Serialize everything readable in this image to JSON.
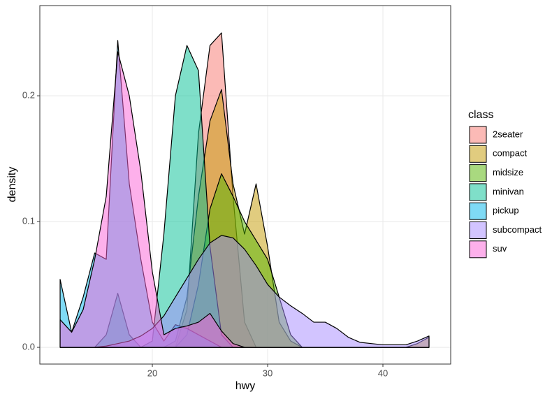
{
  "chart_data": {
    "type": "density",
    "x_label": "hwy",
    "y_label": "density",
    "x": [
      12,
      13,
      14,
      15,
      16,
      17,
      18,
      19,
      20,
      21,
      22,
      23,
      24,
      25,
      26,
      27,
      28,
      29,
      30,
      31,
      32,
      33,
      34,
      35,
      36,
      37,
      38,
      39,
      40,
      41,
      42,
      43,
      44
    ],
    "series": [
      {
        "name": "2seater",
        "color": "#F8766D",
        "values": [
          0,
          0,
          0,
          0,
          0,
          0,
          0,
          0,
          0,
          0,
          0,
          0.03,
          0.17,
          0.24,
          0.25,
          0.12,
          0.02,
          0,
          0,
          0,
          0,
          0,
          0,
          0,
          0,
          0,
          0,
          0,
          0,
          0,
          0,
          0,
          0
        ]
      },
      {
        "name": "compact",
        "color": "#C49A00",
        "values": [
          0,
          0,
          0,
          0,
          0,
          0,
          0,
          0,
          0,
          0,
          0.005,
          0.04,
          0.12,
          0.18,
          0.205,
          0.13,
          0.09,
          0.13,
          0.08,
          0.02,
          0.005,
          0,
          0,
          0,
          0,
          0,
          0,
          0,
          0,
          0,
          0,
          0.003,
          0.008
        ]
      },
      {
        "name": "midsize",
        "color": "#53B400",
        "values": [
          0,
          0,
          0,
          0,
          0,
          0,
          0,
          0,
          0,
          0,
          0,
          0.01,
          0.05,
          0.11,
          0.138,
          0.12,
          0.1,
          0.085,
          0.07,
          0.04,
          0.01,
          0,
          0,
          0,
          0,
          0,
          0,
          0,
          0,
          0,
          0,
          0,
          0
        ]
      },
      {
        "name": "minivan",
        "color": "#00C094",
        "values": [
          0,
          0,
          0,
          0,
          0.01,
          0.043,
          0.01,
          0,
          0.005,
          0.09,
          0.2,
          0.24,
          0.22,
          0.08,
          0.01,
          0,
          0,
          0,
          0,
          0,
          0,
          0,
          0,
          0,
          0,
          0,
          0,
          0,
          0,
          0,
          0,
          0,
          0
        ]
      },
      {
        "name": "pickup",
        "color": "#00B6EB",
        "values": [
          0.054,
          0.012,
          0.04,
          0.075,
          0.07,
          0.244,
          0.13,
          0.07,
          0.02,
          0.005,
          0.018,
          0.015,
          0.01,
          0.005,
          0,
          0,
          0,
          0,
          0,
          0,
          0,
          0,
          0,
          0,
          0,
          0,
          0,
          0,
          0,
          0,
          0,
          0,
          0
        ]
      },
      {
        "name": "subcompact",
        "color": "#A58AFF",
        "values": [
          0,
          0,
          0,
          0,
          0.001,
          0.003,
          0.005,
          0.009,
          0.015,
          0.025,
          0.04,
          0.055,
          0.07,
          0.083,
          0.089,
          0.087,
          0.078,
          0.065,
          0.05,
          0.04,
          0.033,
          0.027,
          0.02,
          0.02,
          0.015,
          0.008,
          0.004,
          0.003,
          0.002,
          0.002,
          0.002,
          0.005,
          0.009
        ]
      },
      {
        "name": "suv",
        "color": "#FB61D7",
        "values": [
          0.022,
          0.012,
          0.03,
          0.07,
          0.12,
          0.235,
          0.2,
          0.14,
          0.06,
          0.01,
          0.015,
          0.017,
          0.02,
          0.027,
          0.013,
          0.003,
          0,
          0,
          0,
          0,
          0,
          0,
          0,
          0,
          0,
          0,
          0,
          0,
          0,
          0,
          0,
          0,
          0
        ]
      }
    ],
    "legend_title": "class",
    "legend_position": "right",
    "xlim": [
      10.24,
      45.88
    ],
    "xticks": [
      20,
      30,
      40
    ],
    "ylim": [
      -0.0133,
      0.2717
    ],
    "yticks": [
      {
        "value": 0,
        "label": "0.0"
      },
      0.1,
      0.2
    ],
    "grid": true,
    "fill_opacity": 0.5
  }
}
